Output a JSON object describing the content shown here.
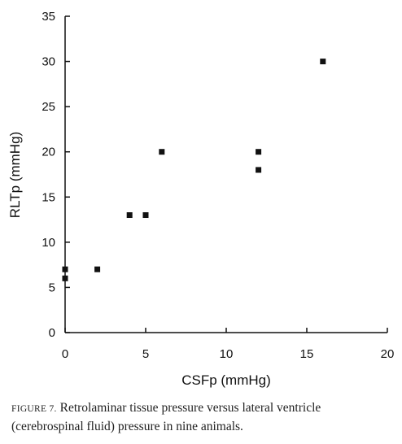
{
  "chart_data": {
    "type": "scatter",
    "xlabel": "CSFp (mmHg)",
    "ylabel": "RLTp (mmHg)",
    "xlim": [
      0,
      20
    ],
    "ylim": [
      0,
      35
    ],
    "xticks": [
      "0",
      "5",
      "10",
      "15",
      "20"
    ],
    "yticks": [
      "0",
      "5",
      "10",
      "15",
      "20",
      "25",
      "30",
      "35"
    ],
    "points": [
      {
        "x": 0,
        "y": 7
      },
      {
        "x": 0,
        "y": 6
      },
      {
        "x": 2,
        "y": 7
      },
      {
        "x": 4,
        "y": 13
      },
      {
        "x": 5,
        "y": 13
      },
      {
        "x": 6,
        "y": 20
      },
      {
        "x": 12,
        "y": 20
      },
      {
        "x": 12,
        "y": 18
      },
      {
        "x": 16,
        "y": 30
      }
    ],
    "grid": false,
    "legend": "none"
  },
  "caption": {
    "label": "FIGURE 7.",
    "text": "Retrolaminar tissue pressure versus lateral ventricle (cerebrospinal fluid) pressure in nine animals."
  }
}
